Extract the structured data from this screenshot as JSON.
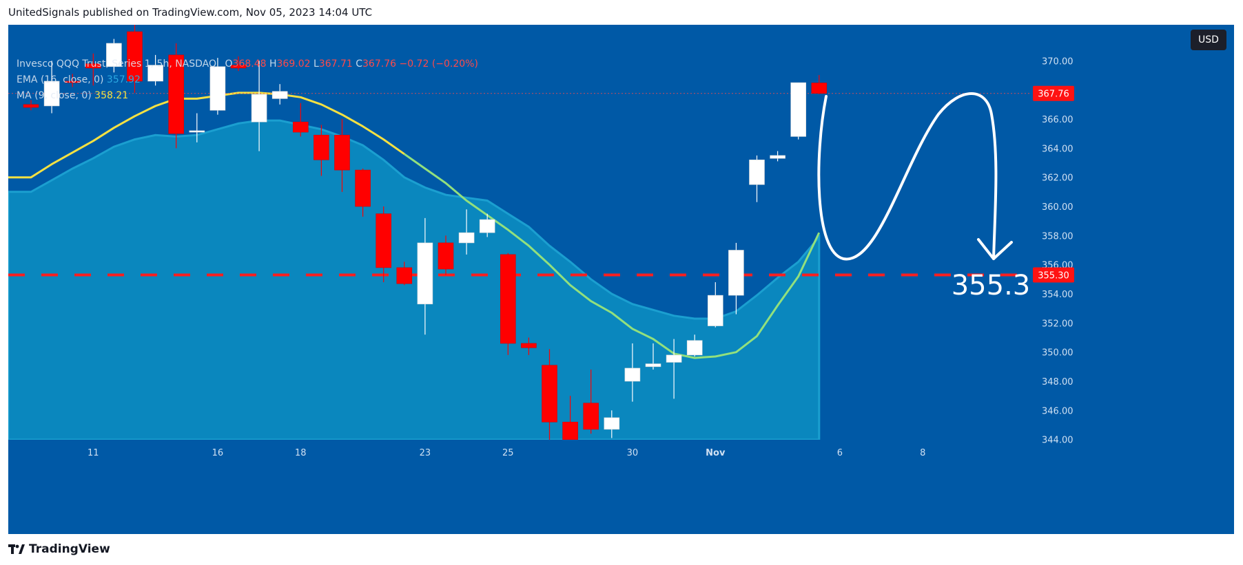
{
  "header": {
    "text": "UnitedSignals published on TradingView.com, Nov 05, 2023 14:04 UTC"
  },
  "legend": {
    "symbol": "Invesco QQQ Trust, Series 1, 5h, NASDAQ",
    "open_label": "O",
    "open": "368.48",
    "high_label": "H",
    "high": "369.02",
    "low_label": "L",
    "low": "367.71",
    "close_label": "C",
    "close": "367.76",
    "change": "−0.72 (−0.20%)",
    "ema_label": "EMA (16, close, 0)",
    "ema_value": "357.92",
    "ma_label": "MA (9, close, 0)",
    "ma_value": "358.21"
  },
  "currency": "USD",
  "footer": {
    "brand": "TradingView"
  },
  "colors": {
    "background": "#0059a6",
    "up": "#ffffff",
    "down": "#ff0000",
    "ema_fill": "#0a87be",
    "ma_line_early": "#f5e142",
    "ma_line_late": "#92e07d",
    "level_line": "#ff1e1e",
    "annotation": "#ffffff"
  },
  "chart_data": {
    "type": "candlestick",
    "ylim": [
      342,
      372
    ],
    "y_ticks": [
      344,
      346,
      348,
      350,
      352,
      354,
      356,
      358,
      360,
      362,
      364,
      366,
      368,
      370
    ],
    "y_tick_labels": [
      "344.00",
      "346.00",
      "348.00",
      "350.00",
      "352.00",
      "354.00",
      "356.00",
      "358.00",
      "360.00",
      "362.00",
      "364.00",
      "366.00",
      "368.00",
      "370.00"
    ],
    "x_tick_labels": [
      {
        "label": "11",
        "bar": 3
      },
      {
        "label": "16",
        "bar": 9
      },
      {
        "label": "18",
        "bar": 13
      },
      {
        "label": "23",
        "bar": 19
      },
      {
        "label": "25",
        "bar": 23
      },
      {
        "label": "30",
        "bar": 29
      },
      {
        "label": "Nov",
        "bar": 33,
        "bold": true
      },
      {
        "label": "6",
        "bar": 39
      },
      {
        "label": "8",
        "bar": 43
      }
    ],
    "candles": [
      {
        "o": 367.0,
        "h": 367.3,
        "l": 366.6,
        "c": 366.8
      },
      {
        "o": 366.9,
        "h": 370.0,
        "l": 366.4,
        "c": 368.6
      },
      {
        "o": 368.6,
        "h": 369.1,
        "l": 368.2,
        "c": 368.5
      },
      {
        "o": 369.8,
        "h": 370.5,
        "l": 368.3,
        "c": 369.5
      },
      {
        "o": 369.6,
        "h": 371.5,
        "l": 369.2,
        "c": 371.2
      },
      {
        "o": 372.0,
        "h": 372.8,
        "l": 367.8,
        "c": 368.6
      },
      {
        "o": 368.6,
        "h": 370.4,
        "l": 368.3,
        "c": 369.7
      },
      {
        "o": 370.4,
        "h": 371.2,
        "l": 364.0,
        "c": 365.0
      },
      {
        "o": 365.1,
        "h": 366.4,
        "l": 364.4,
        "c": 365.2
      },
      {
        "o": 366.6,
        "h": 370.2,
        "l": 366.3,
        "c": 369.6
      },
      {
        "o": 369.7,
        "h": 370.3,
        "l": 369.3,
        "c": 369.5
      },
      {
        "o": 365.8,
        "h": 370.0,
        "l": 363.8,
        "c": 367.7
      },
      {
        "o": 367.4,
        "h": 368.4,
        "l": 367.0,
        "c": 367.9
      },
      {
        "o": 365.8,
        "h": 367.1,
        "l": 364.8,
        "c": 365.1
      },
      {
        "o": 364.9,
        "h": 365.6,
        "l": 362.1,
        "c": 363.2
      },
      {
        "o": 364.9,
        "h": 366.0,
        "l": 361.0,
        "c": 362.5
      },
      {
        "o": 362.5,
        "h": 362.6,
        "l": 359.3,
        "c": 360.0
      },
      {
        "o": 359.5,
        "h": 360.0,
        "l": 354.8,
        "c": 355.8
      },
      {
        "o": 355.8,
        "h": 356.2,
        "l": 354.6,
        "c": 354.7
      },
      {
        "o": 353.3,
        "h": 359.2,
        "l": 351.2,
        "c": 357.5
      },
      {
        "o": 357.5,
        "h": 358.0,
        "l": 355.3,
        "c": 355.7
      },
      {
        "o": 357.5,
        "h": 359.8,
        "l": 356.7,
        "c": 358.2
      },
      {
        "o": 358.2,
        "h": 359.5,
        "l": 357.9,
        "c": 359.1
      },
      {
        "o": 356.7,
        "h": 356.8,
        "l": 349.8,
        "c": 350.6
      },
      {
        "o": 350.6,
        "h": 351.0,
        "l": 349.8,
        "c": 350.3
      },
      {
        "o": 349.1,
        "h": 350.2,
        "l": 342.6,
        "c": 345.2
      },
      {
        "o": 345.2,
        "h": 347.0,
        "l": 343.6,
        "c": 343.6
      },
      {
        "o": 346.5,
        "h": 348.8,
        "l": 344.4,
        "c": 344.7
      },
      {
        "o": 344.7,
        "h": 346.0,
        "l": 344.1,
        "c": 345.5
      },
      {
        "o": 348.0,
        "h": 350.6,
        "l": 346.6,
        "c": 348.9
      },
      {
        "o": 349.0,
        "h": 350.6,
        "l": 348.8,
        "c": 349.2
      },
      {
        "o": 349.3,
        "h": 350.9,
        "l": 346.8,
        "c": 349.8
      },
      {
        "o": 349.8,
        "h": 351.2,
        "l": 349.7,
        "c": 350.8
      },
      {
        "o": 351.8,
        "h": 354.8,
        "l": 351.7,
        "c": 353.9
      },
      {
        "o": 353.9,
        "h": 357.5,
        "l": 352.6,
        "c": 357.0
      },
      {
        "o": 361.5,
        "h": 363.5,
        "l": 360.3,
        "c": 363.2
      },
      {
        "o": 363.3,
        "h": 363.8,
        "l": 363.1,
        "c": 363.5
      },
      {
        "o": 364.8,
        "h": 368.5,
        "l": 364.6,
        "c": 368.5
      },
      {
        "o": 368.48,
        "h": 369.02,
        "l": 367.71,
        "c": 367.76
      }
    ],
    "ma": [
      362.0,
      362.9,
      363.7,
      364.5,
      365.4,
      366.2,
      366.9,
      367.4,
      367.4,
      367.6,
      367.8,
      367.8,
      367.7,
      367.5,
      367.0,
      366.3,
      365.5,
      364.6,
      363.6,
      362.6,
      361.6,
      360.4,
      359.4,
      358.4,
      357.3,
      356.0,
      354.6,
      353.5,
      352.7,
      351.6,
      350.9,
      349.9,
      349.6,
      349.7,
      350.0,
      351.1,
      353.2,
      355.2,
      358.2
    ],
    "ema": [
      361.0,
      361.8,
      362.6,
      363.3,
      364.1,
      364.6,
      364.9,
      364.8,
      364.9,
      365.3,
      365.7,
      365.9,
      365.9,
      365.6,
      365.3,
      364.8,
      364.2,
      363.2,
      362.0,
      361.3,
      360.8,
      360.6,
      360.4,
      359.5,
      358.6,
      357.3,
      356.2,
      355.0,
      354.0,
      353.3,
      352.9,
      352.5,
      352.3,
      352.3,
      352.8,
      353.9,
      355.1,
      356.2,
      357.9
    ],
    "level": 355.3,
    "level_label": "355.30",
    "last_price": 367.76,
    "last_price_label": "367.76",
    "annotation_text": "355.3"
  }
}
